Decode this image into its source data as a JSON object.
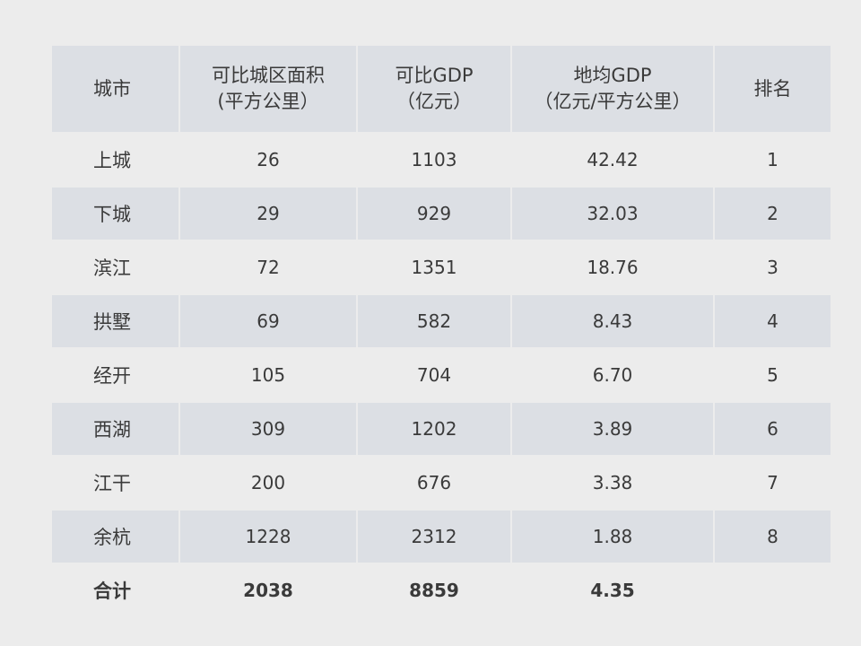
{
  "headers": [
    {
      "line1": "城市",
      "line2": ""
    },
    {
      "line1": "可比城区面积",
      "line2": "(平方公里）"
    },
    {
      "line1": "可比GDP",
      "line2": "（亿元）"
    },
    {
      "line1": "地均GDP",
      "line2": "（亿元/平方公里）"
    },
    {
      "line1": "排名",
      "line2": ""
    }
  ],
  "rows": [
    {
      "city": "上城",
      "area": "26",
      "gdp": "1103",
      "density": "42.42",
      "rank": "1"
    },
    {
      "city": "下城",
      "area": "29",
      "gdp": "929",
      "density": "32.03",
      "rank": "2"
    },
    {
      "city": "滨江",
      "area": "72",
      "gdp": "1351",
      "density": "18.76",
      "rank": "3"
    },
    {
      "city": "拱墅",
      "area": "69",
      "gdp": "582",
      "density": "8.43",
      "rank": "4"
    },
    {
      "city": "经开",
      "area": "105",
      "gdp": "704",
      "density": "6.70",
      "rank": "5"
    },
    {
      "city": "西湖",
      "area": "309",
      "gdp": "1202",
      "density": "3.89",
      "rank": "6"
    },
    {
      "city": "江干",
      "area": "200",
      "gdp": "676",
      "density": "3.38",
      "rank": "7"
    },
    {
      "city": "余杭",
      "area": "1228",
      "gdp": "2312",
      "density": "1.88",
      "rank": "8"
    }
  ],
  "total": {
    "city": "合计",
    "area": "2038",
    "gdp": "8859",
    "density": "4.35",
    "rank": ""
  }
}
